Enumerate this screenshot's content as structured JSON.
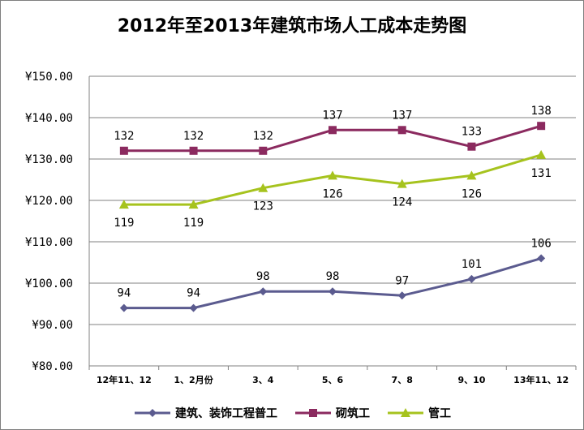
{
  "chart_data": {
    "type": "line",
    "title": "2012年至2013年建筑市场人工成本走势图",
    "xlabel": "",
    "ylabel": "",
    "categories": [
      "12年11、12",
      "1、2月份",
      "3、4",
      "5、6",
      "7、8",
      "9、10",
      "13年11、12"
    ],
    "ylim": [
      80,
      150
    ],
    "yticks": [
      80,
      90,
      100,
      110,
      120,
      130,
      140,
      150
    ],
    "ytick_labels": [
      "¥80.00",
      "¥90.00",
      "¥100.00",
      "¥110.00",
      "¥120.00",
      "¥130.00",
      "¥140.00",
      "¥150.00"
    ],
    "grid": true,
    "legend_position": "bottom",
    "series": [
      {
        "name": "建筑、装饰工程普工",
        "values": [
          94,
          94,
          98,
          98,
          97,
          101,
          106
        ],
        "color": "#5b5b8f",
        "marker": "diamond",
        "label_position": "above"
      },
      {
        "name": "砌筑工",
        "values": [
          132,
          132,
          132,
          137,
          137,
          133,
          138
        ],
        "color": "#8b2a5f",
        "marker": "square",
        "label_position": "above"
      },
      {
        "name": "管工",
        "values": [
          119,
          119,
          123,
          126,
          124,
          126,
          131
        ],
        "color": "#a6c31e",
        "marker": "triangle",
        "label_position": "below"
      }
    ]
  }
}
